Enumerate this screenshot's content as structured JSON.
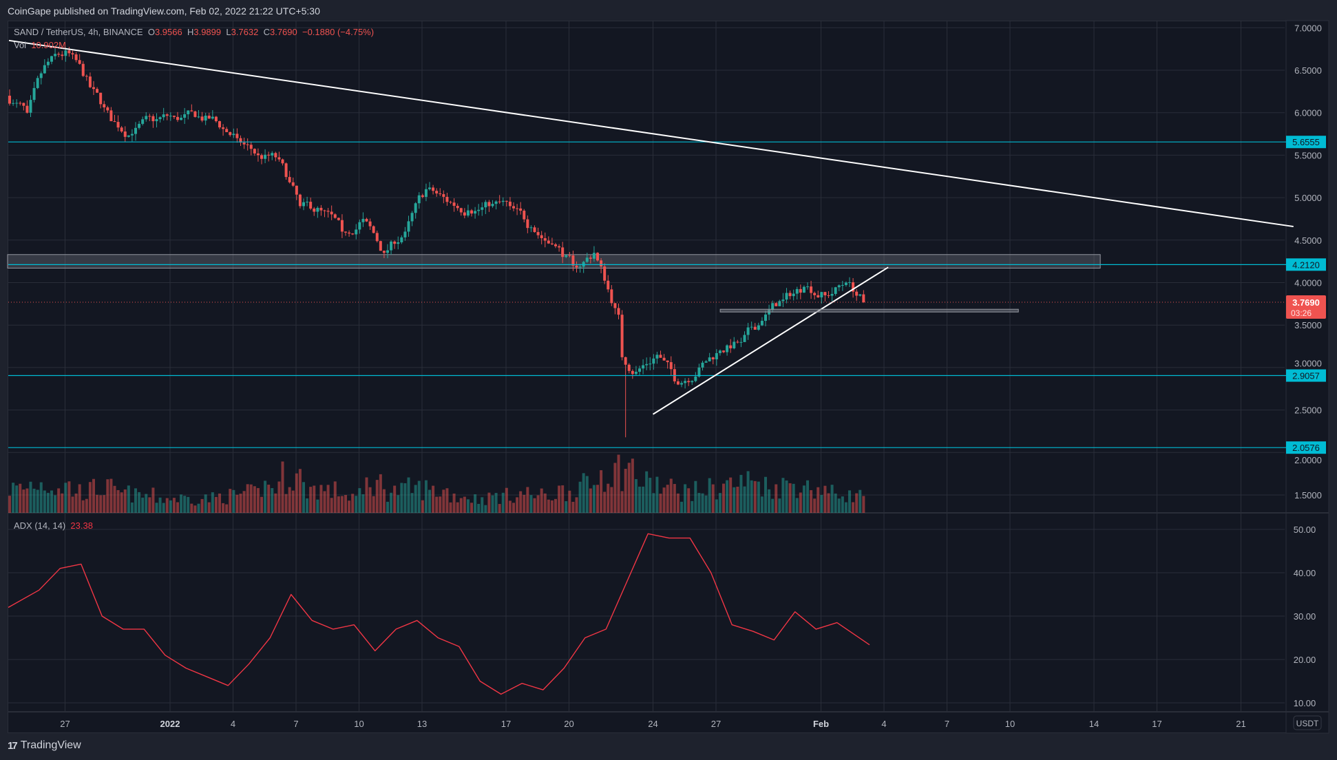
{
  "header": {
    "published": "CoinGape published on TradingView.com, Feb 02, 2022 21:22 UTC+5:30"
  },
  "legend": {
    "symbol": "SAND / TetherUS, 4h, BINANCE",
    "o_label": "O",
    "o": "3.9566",
    "h_label": "H",
    "h": "3.9899",
    "l_label": "L",
    "l": "3.7632",
    "c_label": "C",
    "c": "3.7690",
    "change": "−0.1880 (−4.75%)",
    "vol_label": "Vol",
    "vol": "10.902M"
  },
  "adx": {
    "label": "ADX (14, 14)",
    "value": "23.38"
  },
  "axis": {
    "currency": "USDT",
    "price_ticks": [
      "7.0000",
      "6.5000",
      "6.0000",
      "5.5000",
      "5.0000",
      "4.5000",
      "4.0000",
      "3.5000",
      "3.0000",
      "2.5000",
      "2.0000",
      "1.5000"
    ],
    "adx_ticks": [
      "50.00",
      "40.00",
      "30.00",
      "20.00",
      "10.00"
    ],
    "levels": [
      {
        "label": "5.6555",
        "value": 5.6555
      },
      {
        "label": "4.2120",
        "value": 4.212
      },
      {
        "label": "2.9057",
        "value": 2.9057
      },
      {
        "label": "2.0576",
        "value": 2.0576
      }
    ],
    "current": {
      "label": "3.7690",
      "value": 3.769,
      "countdown": "03:26"
    },
    "dates": [
      {
        "label": "27",
        "day": 3
      },
      {
        "label": "2022",
        "day": 8,
        "bold": true
      },
      {
        "label": "4",
        "day": 11
      },
      {
        "label": "7",
        "day": 14
      },
      {
        "label": "10",
        "day": 17
      },
      {
        "label": "13",
        "day": 20
      },
      {
        "label": "17",
        "day": 24
      },
      {
        "label": "20",
        "day": 27
      },
      {
        "label": "24",
        "day": 31
      },
      {
        "label": "27",
        "day": 34
      },
      {
        "label": "Feb",
        "day": 39,
        "bold": true
      },
      {
        "label": "4",
        "day": 42
      },
      {
        "label": "7",
        "day": 45
      },
      {
        "label": "10",
        "day": 48
      },
      {
        "label": "14",
        "day": 52
      },
      {
        "label": "17",
        "day": 55
      },
      {
        "label": "21",
        "day": 59
      }
    ]
  },
  "colors": {
    "up": "#26a69a",
    "down": "#ef5350",
    "level": "#00bcd4",
    "adx": "#f23645",
    "trend": "#ffffff"
  },
  "chart_data": {
    "type": "candlestick",
    "title": "SAND / TetherUS, 4h, BINANCE",
    "start": "Dec 24 2021",
    "candles_per_day": 6,
    "daily_open_first": 6.2,
    "daily_close": [
      6.0,
      6.6,
      6.7,
      6.3,
      5.9,
      5.75,
      5.9,
      5.95,
      5.95,
      5.9,
      5.7,
      5.5,
      5.45,
      4.9,
      4.85,
      4.6,
      4.75,
      4.35,
      4.6,
      5.1,
      4.95,
      4.85,
      4.9,
      4.9,
      4.65,
      4.45,
      4.2,
      4.35,
      3.7,
      2.95,
      3.15,
      2.8,
      3.0,
      3.2,
      3.3,
      3.55,
      3.8,
      3.95,
      3.85,
      4.0,
      3.769
    ],
    "volume_rel": [
      0.5,
      0.6,
      0.55,
      0.45,
      0.5,
      0.4,
      0.35,
      0.3,
      0.3,
      0.3,
      0.35,
      0.4,
      0.55,
      0.75,
      0.5,
      0.45,
      0.35,
      0.6,
      0.45,
      0.5,
      0.45,
      0.35,
      0.3,
      0.35,
      0.4,
      0.35,
      0.45,
      0.55,
      0.85,
      0.9,
      0.6,
      0.5,
      0.45,
      0.5,
      0.6,
      0.65,
      0.55,
      0.6,
      0.5,
      0.4,
      0.35
    ],
    "adx": [
      32,
      36,
      41,
      42,
      30,
      27,
      27,
      21,
      18,
      16,
      14,
      19,
      25,
      35,
      29,
      27,
      28,
      22,
      27,
      29,
      25,
      23,
      15,
      12,
      14.5,
      13,
      18,
      25,
      27,
      38,
      49,
      48,
      48,
      40,
      28,
      26.5,
      24.5,
      31,
      27,
      28.5,
      23.38
    ],
    "ylim": [
      1.3,
      7.1
    ],
    "adx_ylim": [
      10,
      50
    ],
    "annotations": {
      "descending_trendline": [
        [
          0,
          6.85
        ],
        [
          61.5,
          4.66
        ]
      ],
      "rising_trendline": [
        [
          31.0,
          2.45
        ],
        [
          42.2,
          4.18
        ]
      ],
      "supply_zone": {
        "from_day": 0,
        "to_day": 52.3,
        "top": 4.33,
        "bottom": 4.17
      },
      "support_line": {
        "from_day": 34.2,
        "to_day": 48.4,
        "value": 3.67
      }
    }
  }
}
